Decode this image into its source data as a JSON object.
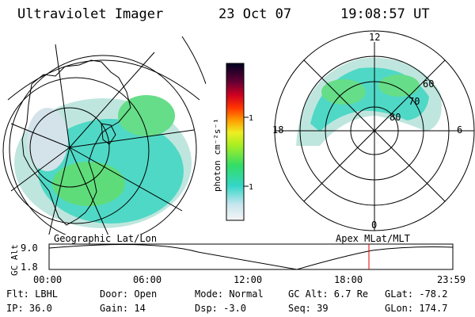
{
  "header": {
    "title": "Ultraviolet Imager",
    "date": "23 Oct 07",
    "time": "19:08:57 UT"
  },
  "left_panel": {
    "label": "Geographic Lat/Lon"
  },
  "right_panel": {
    "label": "Apex MLat/MLT",
    "lat_labels": [
      "60",
      "70",
      "80"
    ],
    "mlt_labels": {
      "top": "12",
      "bottom": "0",
      "left": "18",
      "right": "6"
    }
  },
  "colorbar": {
    "unit": "photon cm⁻²s⁻¹",
    "tick_labels": [
      "100",
      "10"
    ]
  },
  "altitude_plot": {
    "ylabel": "GC Alt",
    "yticks": [
      "9.0",
      "1.8"
    ],
    "xticks": [
      "00:00",
      "06:00",
      "12:00",
      "18:00",
      "23:59"
    ],
    "current_time_marker_color": "#e00000"
  },
  "footer": {
    "flt": "Flt: LBHL",
    "ip": "IP: 36.0",
    "door": "Door: Open",
    "gain": "Gain: 14",
    "mode": "Mode: Normal",
    "dsp": "Dsp:   -3.0",
    "gcalt": "GC Alt: 6.7 Re",
    "seq": "Seq: 39",
    "glat": "GLat: -78.2",
    "glon": "GLon: 174.7"
  },
  "colors": {
    "low": "#cfe3ea",
    "cyan": "#33d6c8",
    "green": "#33dd44",
    "yellow": "#ddee22"
  }
}
